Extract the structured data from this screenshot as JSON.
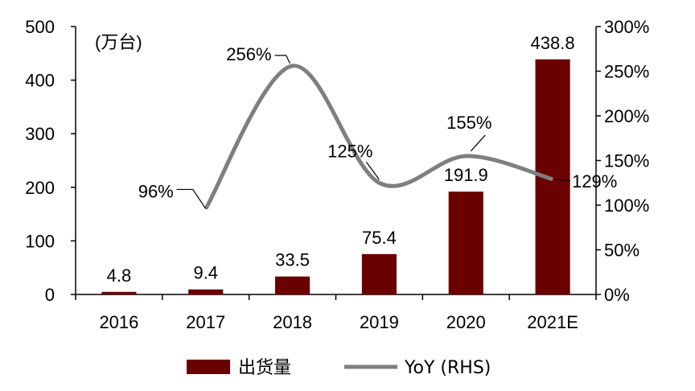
{
  "chart_data": {
    "type": "bar",
    "categories": [
      "2016",
      "2017",
      "2018",
      "2019",
      "2020",
      "2021E"
    ],
    "unit_label": "(万台)",
    "series": [
      {
        "name": "出货量",
        "type": "bar",
        "axis": "left",
        "color": "#6b0000",
        "values": [
          4.8,
          9.4,
          33.5,
          75.4,
          191.9,
          438.8
        ],
        "labels": [
          "4.8",
          "9.4",
          "33.5",
          "75.4",
          "191.9",
          "438.8"
        ]
      },
      {
        "name": "YoY (RHS)",
        "type": "line",
        "axis": "right",
        "color": "#7f7f7f",
        "values": [
          null,
          96,
          256,
          125,
          155,
          129
        ],
        "labels": [
          "",
          "96%",
          "256%",
          "125%",
          "155%",
          "129%"
        ]
      }
    ],
    "y_left": {
      "min": 0,
      "max": 500,
      "ticks": [
        "0",
        "100",
        "200",
        "300",
        "400",
        "500"
      ]
    },
    "y_right": {
      "min": 0,
      "max": 300,
      "ticks": [
        "0%",
        "50%",
        "100%",
        "150%",
        "200%",
        "250%",
        "300%"
      ]
    },
    "grid": false,
    "legend_position": "bottom"
  }
}
